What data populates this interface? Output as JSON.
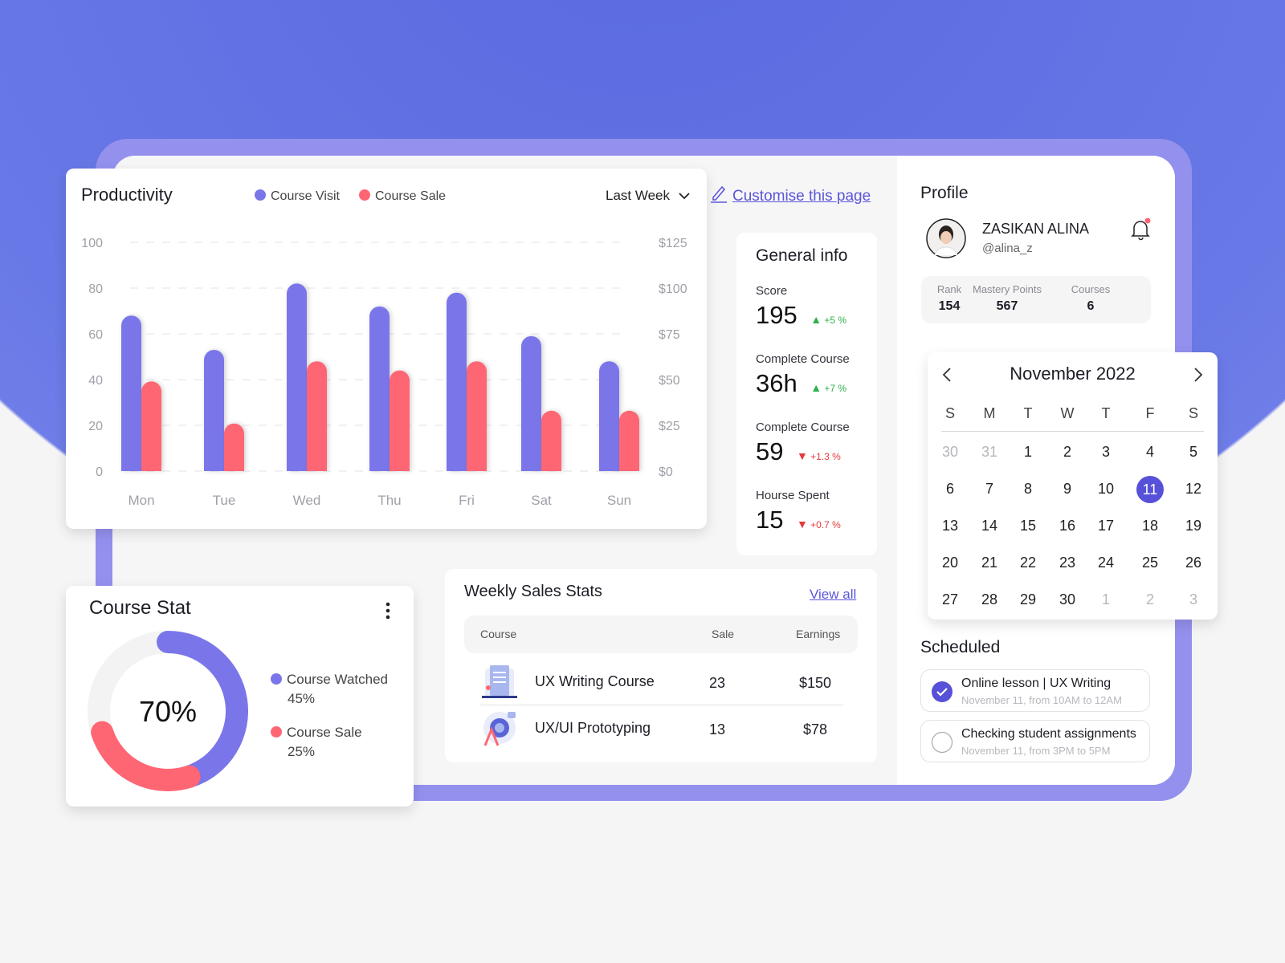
{
  "colors": {
    "accent": "#7a76ea",
    "sale": "#ff6673",
    "selected": "#5750d8",
    "frame": "#9490ee",
    "up": "#2bb24c",
    "down": "#e23b3b"
  },
  "productivity": {
    "title": "Productivity",
    "legend": [
      {
        "label": "Course Visit",
        "color": "#7a76ea"
      },
      {
        "label": "Course Sale",
        "color": "#ff6673"
      }
    ],
    "period": "Last Week"
  },
  "chart_data": {
    "type": "bar",
    "categories": [
      "Mon",
      "Tue",
      "Wed",
      "Thu",
      "Fri",
      "Sat",
      "Sun"
    ],
    "series": [
      {
        "name": "Course Visit",
        "axis": "left",
        "values": [
          68,
          53,
          82,
          72,
          78,
          59,
          48
        ]
      },
      {
        "name": "Course Sale",
        "axis": "right",
        "values": [
          49,
          26,
          60,
          55,
          60,
          33,
          33
        ]
      }
    ],
    "left_ticks": [
      "0",
      "20",
      "40",
      "60",
      "80",
      "100"
    ],
    "right_ticks": [
      "$0",
      "$25",
      "$50",
      "$75",
      "$100",
      "$125"
    ],
    "ylim_left": [
      0,
      100
    ],
    "ylim_right": [
      0,
      125
    ],
    "grid": true,
    "legend": "top"
  },
  "customise_label": "Customise this page",
  "general_info": {
    "title": "General info",
    "items": [
      {
        "label": "Score",
        "value": "195",
        "change": "+5 %",
        "dir": "up"
      },
      {
        "label": "Complete Course",
        "value": "36h",
        "change": "+7 %",
        "dir": "up"
      },
      {
        "label": "Complete Course",
        "value": "59",
        "change": "+1.3 %",
        "dir": "down"
      },
      {
        "label": "Hourse Spent",
        "value": "15",
        "change": "+0.7 %",
        "dir": "down"
      }
    ]
  },
  "course_stat": {
    "title": "Course Stat",
    "center": "70%",
    "legend": [
      {
        "label": "Course Watched",
        "value": "45%",
        "pct": 45,
        "color": "#7a76ea"
      },
      {
        "label": "Course Sale",
        "value": "25%",
        "pct": 25,
        "color": "#ff6673"
      }
    ]
  },
  "weekly_sales": {
    "title": "Weekly Sales Stats",
    "view_all": "View all",
    "columns": [
      "Course",
      "Sale",
      "Earnings"
    ],
    "rows": [
      {
        "course": "UX Writing Course",
        "sale": "23",
        "earnings": "$150"
      },
      {
        "course": "UX/UI Prototyping",
        "sale": "13",
        "earnings": "$78"
      }
    ]
  },
  "profile": {
    "title": "Profile",
    "name": "ZASIKAN ALINA",
    "handle": "@alina_z",
    "stats": [
      {
        "label": "Rank",
        "value": "154"
      },
      {
        "label": "Mastery Points",
        "value": "567"
      },
      {
        "label": "Courses",
        "value": "6"
      }
    ]
  },
  "calendar": {
    "month": "November 2022",
    "weekdays": [
      "S",
      "M",
      "T",
      "W",
      "T",
      "F",
      "S"
    ],
    "selected": "11",
    "weeks": [
      [
        "30",
        "31",
        "1",
        "2",
        "3",
        "4",
        "5"
      ],
      [
        "6",
        "7",
        "8",
        "9",
        "10",
        "11",
        "12"
      ],
      [
        "13",
        "14",
        "15",
        "16",
        "17",
        "18",
        "19"
      ],
      [
        "20",
        "21",
        "22",
        "23",
        "24",
        "25",
        "26"
      ],
      [
        "27",
        "28",
        "29",
        "30",
        "1",
        "2",
        "3"
      ]
    ]
  },
  "scheduled": {
    "title": "Scheduled",
    "items": [
      {
        "title": "Online lesson | UX Writing",
        "time": "November 11, from 10AM to 12AM",
        "done": true
      },
      {
        "title": "Checking student assignments",
        "time": "November 11, from 3PM to 5PM",
        "done": false
      }
    ]
  }
}
